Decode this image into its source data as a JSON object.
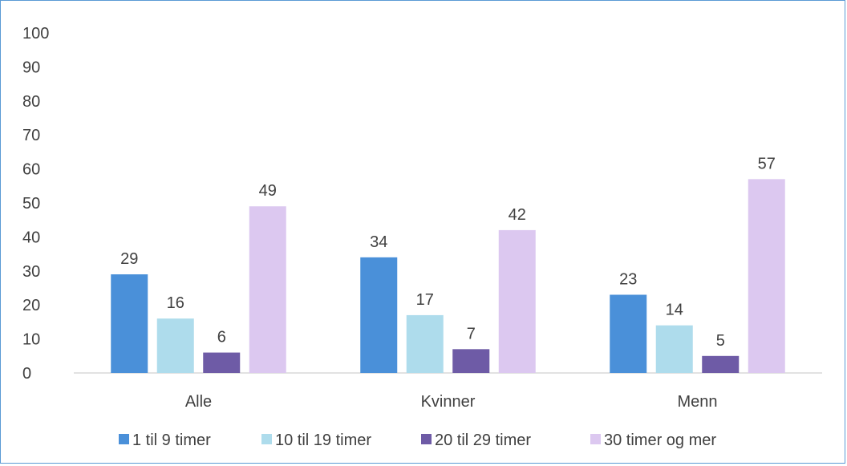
{
  "chart_data": {
    "type": "bar",
    "categories": [
      "Alle",
      "Kvinner",
      "Menn"
    ],
    "series": [
      {
        "name": "1 til 9 timer",
        "values": [
          29,
          34,
          23
        ],
        "color": "#4a90d9"
      },
      {
        "name": "10 til 19 timer",
        "values": [
          16,
          17,
          14
        ],
        "color": "#aedcec"
      },
      {
        "name": "20 til 29 timer",
        "values": [
          6,
          7,
          5
        ],
        "color": "#6e5ba6"
      },
      {
        "name": "30 timer og mer",
        "values": [
          49,
          42,
          57
        ],
        "color": "#dcc8f0"
      }
    ],
    "ylim": [
      0,
      100
    ],
    "yticks": [
      "0",
      "10",
      "20",
      "30",
      "40",
      "50",
      "60",
      "70",
      "80",
      "90",
      "100"
    ],
    "data_labels": [
      [
        "29",
        "34",
        "23"
      ],
      [
        "16",
        "17",
        "14"
      ],
      [
        "6",
        "7",
        "5"
      ],
      [
        "49",
        "42",
        "57"
      ]
    ],
    "grid": false,
    "legend": "bottom"
  }
}
